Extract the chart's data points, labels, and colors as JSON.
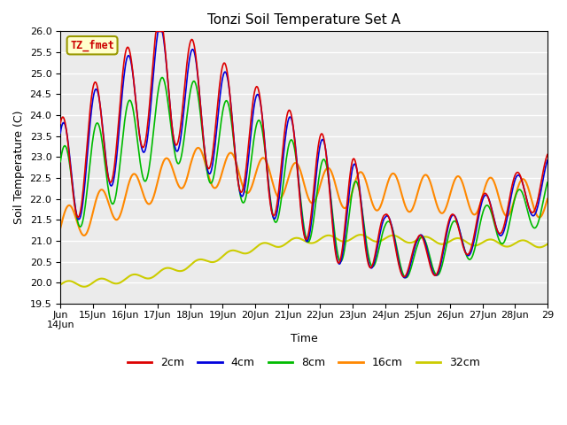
{
  "title": "Tonzi Soil Temperature Set A",
  "xlabel": "Time",
  "ylabel": "Soil Temperature (C)",
  "ylim": [
    19.5,
    26.0
  ],
  "xlim": [
    0,
    360
  ],
  "annotation": "TZ_fmet",
  "series_labels": [
    "2cm",
    "4cm",
    "8cm",
    "16cm",
    "32cm"
  ],
  "series_colors": [
    "#dd0000",
    "#0000dd",
    "#00bb00",
    "#ff8800",
    "#cccc00"
  ],
  "xtick_positions": [
    0,
    24,
    48,
    72,
    96,
    120,
    144,
    168,
    192,
    216,
    240,
    264,
    288,
    312,
    336,
    360
  ],
  "xtick_labels": [
    "Jun\n14Jun",
    "15Jun",
    "16Jun",
    "17Jun",
    "18Jun",
    "19Jun",
    "20Jun",
    "21Jun",
    "22Jun",
    "23Jun",
    "24Jun",
    "25Jun",
    "26Jun",
    "27Jun",
    "28Jun",
    "29"
  ],
  "ytick_positions": [
    19.5,
    20.0,
    20.5,
    21.0,
    21.5,
    22.0,
    22.5,
    23.0,
    23.5,
    24.0,
    24.5,
    25.0,
    25.5,
    26.0
  ],
  "plot_bg_color": "#ebebeb"
}
